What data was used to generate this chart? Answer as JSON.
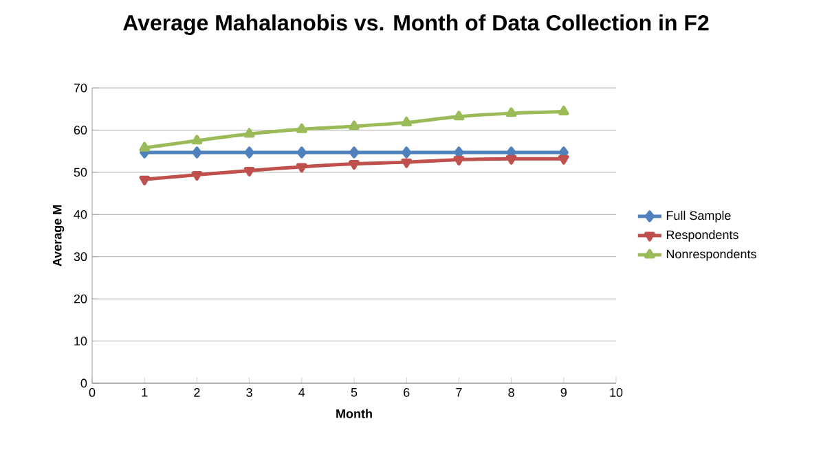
{
  "chart_data": {
    "type": "line",
    "title": "Average Mahalanobis vs. Month of Data Collection in F2",
    "xlabel": "Month",
    "ylabel": "Average M",
    "x": [
      1,
      2,
      3,
      4,
      5,
      6,
      7,
      8,
      9
    ],
    "series": [
      {
        "name": "Full Sample",
        "color": "#4f81bd",
        "marker": "diamond",
        "values": [
          54.7,
          54.7,
          54.7,
          54.7,
          54.7,
          54.7,
          54.7,
          54.7,
          54.7
        ]
      },
      {
        "name": "Respondents",
        "color": "#c0504d",
        "marker": "triangle-down",
        "values": [
          48.3,
          49.4,
          50.4,
          51.3,
          52.0,
          52.4,
          53.0,
          53.2,
          53.2
        ]
      },
      {
        "name": "Nonrespondents",
        "color": "#9bbb59",
        "marker": "triangle",
        "values": [
          55.8,
          57.5,
          59.1,
          60.2,
          60.9,
          61.8,
          63.2,
          64.0,
          64.4
        ]
      }
    ],
    "xlim": [
      0,
      10
    ],
    "xticks": [
      0,
      1,
      2,
      3,
      4,
      5,
      6,
      7,
      8,
      9,
      10
    ],
    "ylim": [
      0,
      70
    ],
    "yticks": [
      0,
      10,
      20,
      30,
      40,
      50,
      60,
      70
    ],
    "grid": "y",
    "legend": "right",
    "line_style": "solid"
  }
}
